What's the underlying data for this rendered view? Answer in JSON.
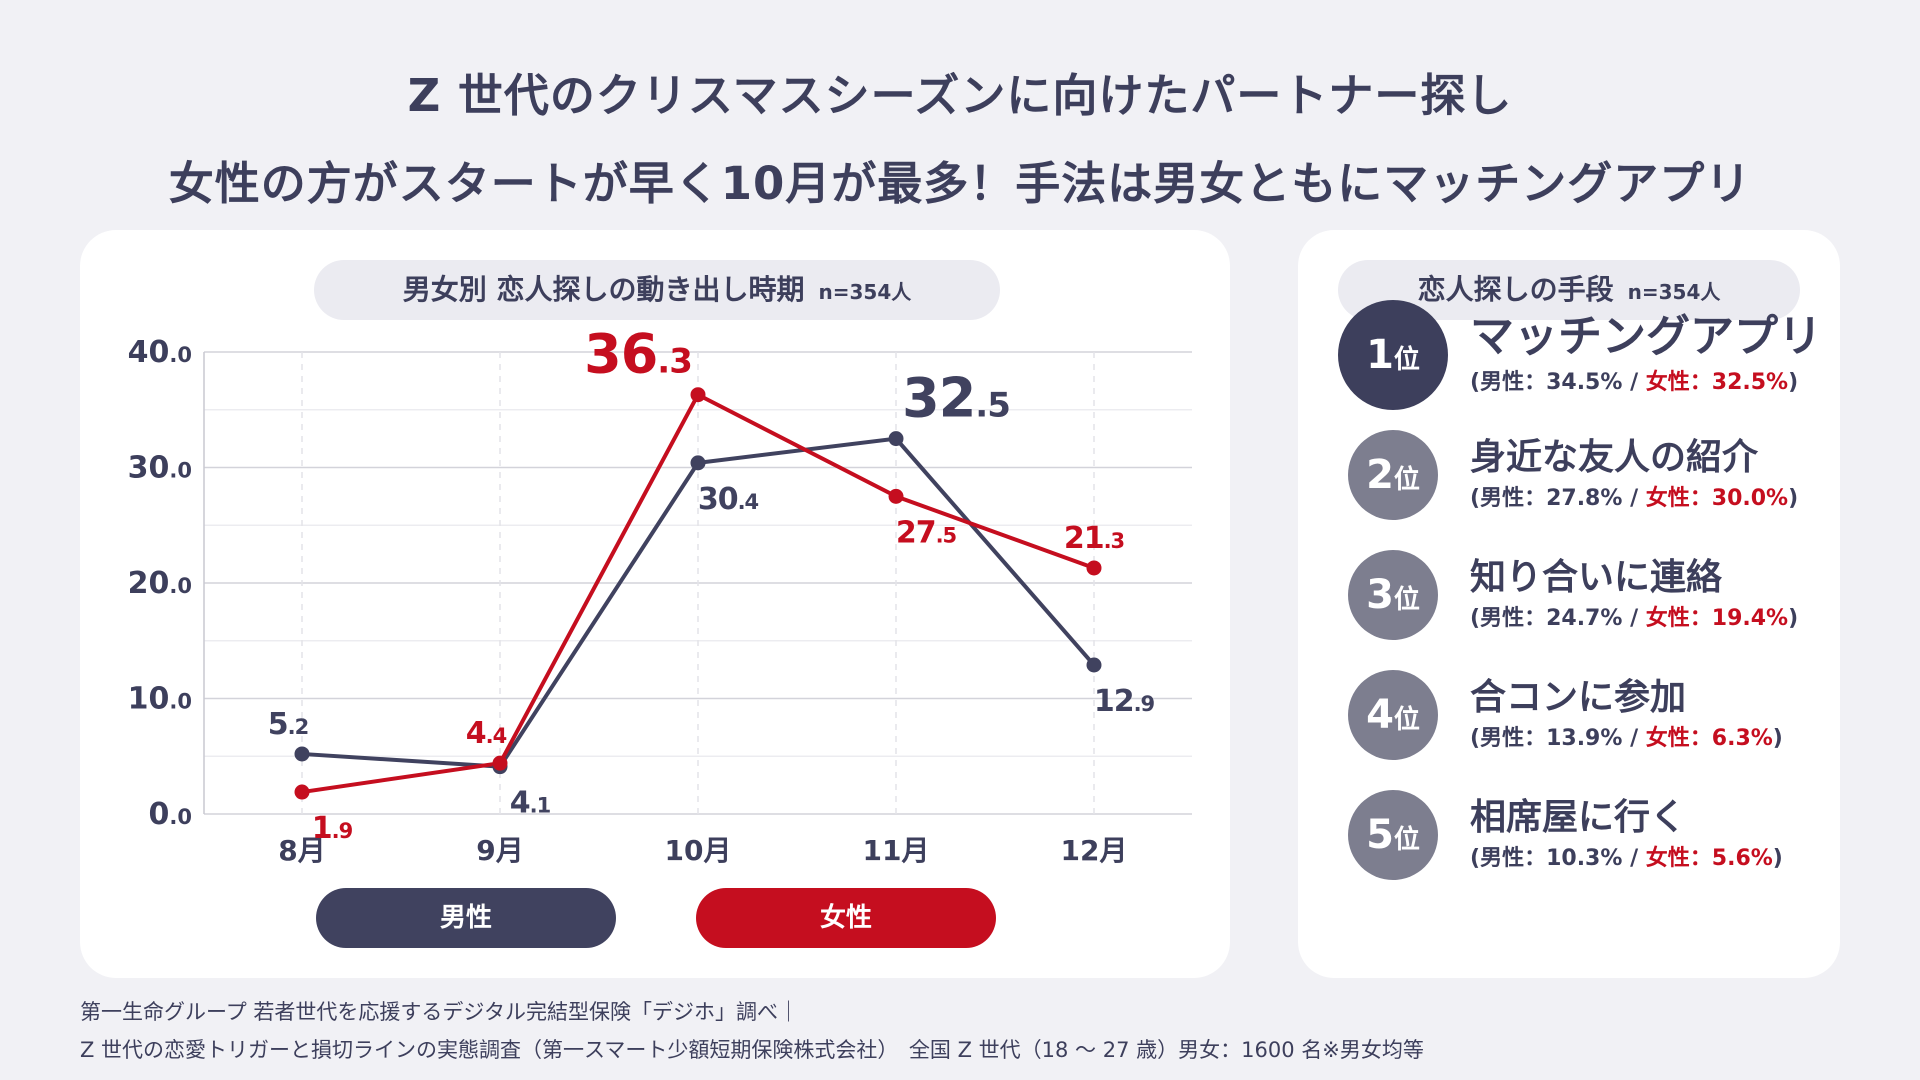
{
  "title": {
    "line1": "Z 世代のクリスマスシーズンに向けたパートナー探し",
    "line2": "女性の方がスタートが早く10月が最多！手法は男女ともにマッチングアプリ"
  },
  "chart_section": {
    "heading": "男女別 恋人探しの動き出し時期",
    "n": "n=354人"
  },
  "chart_data": {
    "type": "line",
    "title": "男女別 恋人探しの動き出し時期",
    "categories": [
      "8月",
      "9月",
      "10月",
      "11月",
      "12月"
    ],
    "series": [
      {
        "name": "男性",
        "color": "#40425f",
        "values": [
          5.2,
          4.1,
          30.4,
          32.5,
          12.9
        ]
      },
      {
        "name": "女性",
        "color": "#c50e1f",
        "values": [
          1.9,
          4.4,
          36.3,
          27.5,
          21.3
        ]
      }
    ],
    "ylim": [
      0,
      40
    ],
    "yticks": [
      0,
      10,
      20,
      30,
      40
    ],
    "ytick_labels": [
      "0.0",
      "10.0",
      "20.0",
      "30.0",
      "40.0"
    ],
    "xlabel": "",
    "ylabel": "",
    "grid": true,
    "legend": "bottom"
  },
  "legend": {
    "male": "男性",
    "female": "女性"
  },
  "ranking_section": {
    "heading": "恋人探しの手段",
    "n": "n=354人",
    "rank_unit": "位",
    "male_prefix": "男性：",
    "female_prefix": "女性：",
    "items": [
      {
        "rank": "1",
        "name": "マッチングアプリ",
        "male": "34.5%",
        "female": "32.5%"
      },
      {
        "rank": "2",
        "name": "身近な友人の紹介",
        "male": "27.8%",
        "female": "30.0%"
      },
      {
        "rank": "3",
        "name": "知り合いに連絡",
        "male": "24.7%",
        "female": "19.4%"
      },
      {
        "rank": "4",
        "name": "合コンに参加",
        "male": "13.9%",
        "female": "6.3%"
      },
      {
        "rank": "5",
        "name": "相席屋に行く",
        "male": "10.3%",
        "female": "5.6%"
      }
    ]
  },
  "colors": {
    "male": "#40425f",
    "female": "#c50e1f",
    "top_rank": "#3d3f5c",
    "other_rank": "#7d7e8f"
  },
  "source": {
    "line1": "第一生命グループ 若者世代を応援するデジタル完結型保険「デジホ」調べ｜",
    "line2": "Z 世代の恋愛トリガーと損切ラインの実態調査（第一スマート少額短期保険株式会社）　全国 Z 世代（18 ～ 27 歳）男女：1600 名※男女均等"
  }
}
